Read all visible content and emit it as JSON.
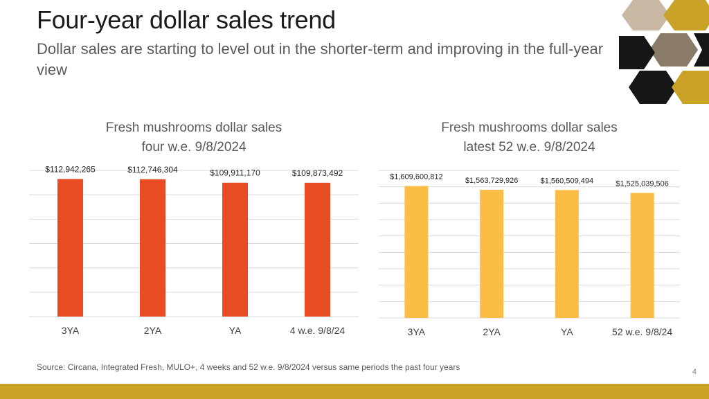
{
  "title": "Four-year dollar sales trend",
  "subtitle": "Dollar sales are starting to level out in the shorter-term and improving in the full-year view",
  "source": "Source: Circana, Integrated Fresh, MULO+, 4 weeks and 52 w.e. 9/8/2024 versus same periods the past four years",
  "page_number": "4",
  "colors": {
    "accent_orange": "#e84c22",
    "accent_yellow": "#fbbd45",
    "footer_gold": "#c9a227",
    "hex_dark": "#161616"
  },
  "chart_data": [
    {
      "type": "bar",
      "title": [
        "Fresh mushrooms dollar sales",
        "four w.e. 9/8/2024"
      ],
      "categories": [
        "3YA",
        "2YA",
        "YA",
        "4 w.e. 9/8/24"
      ],
      "values": [
        112942265,
        112746304,
        109911170,
        109873492
      ],
      "data_labels": [
        "$112,942,265",
        "$112,746,304",
        "$109,911,170",
        "$109,873,492"
      ],
      "ylim": [
        0,
        120000000
      ],
      "grid": true,
      "color": "#e84c22"
    },
    {
      "type": "bar",
      "title": [
        "Fresh mushrooms dollar sales",
        "latest 52 w.e. 9/8/2024"
      ],
      "categories": [
        "3YA",
        "2YA",
        "YA",
        "52 w.e. 9/8/24"
      ],
      "values": [
        1609600812,
        1563729926,
        1560509494,
        1525039506
      ],
      "data_labels": [
        "$1,609,600,812",
        "$1,563,729,926",
        "$1,560,509,494",
        "$1,525,039,506"
      ],
      "ylim": [
        0,
        1800000000
      ],
      "grid": true,
      "color": "#fbbd45"
    }
  ]
}
